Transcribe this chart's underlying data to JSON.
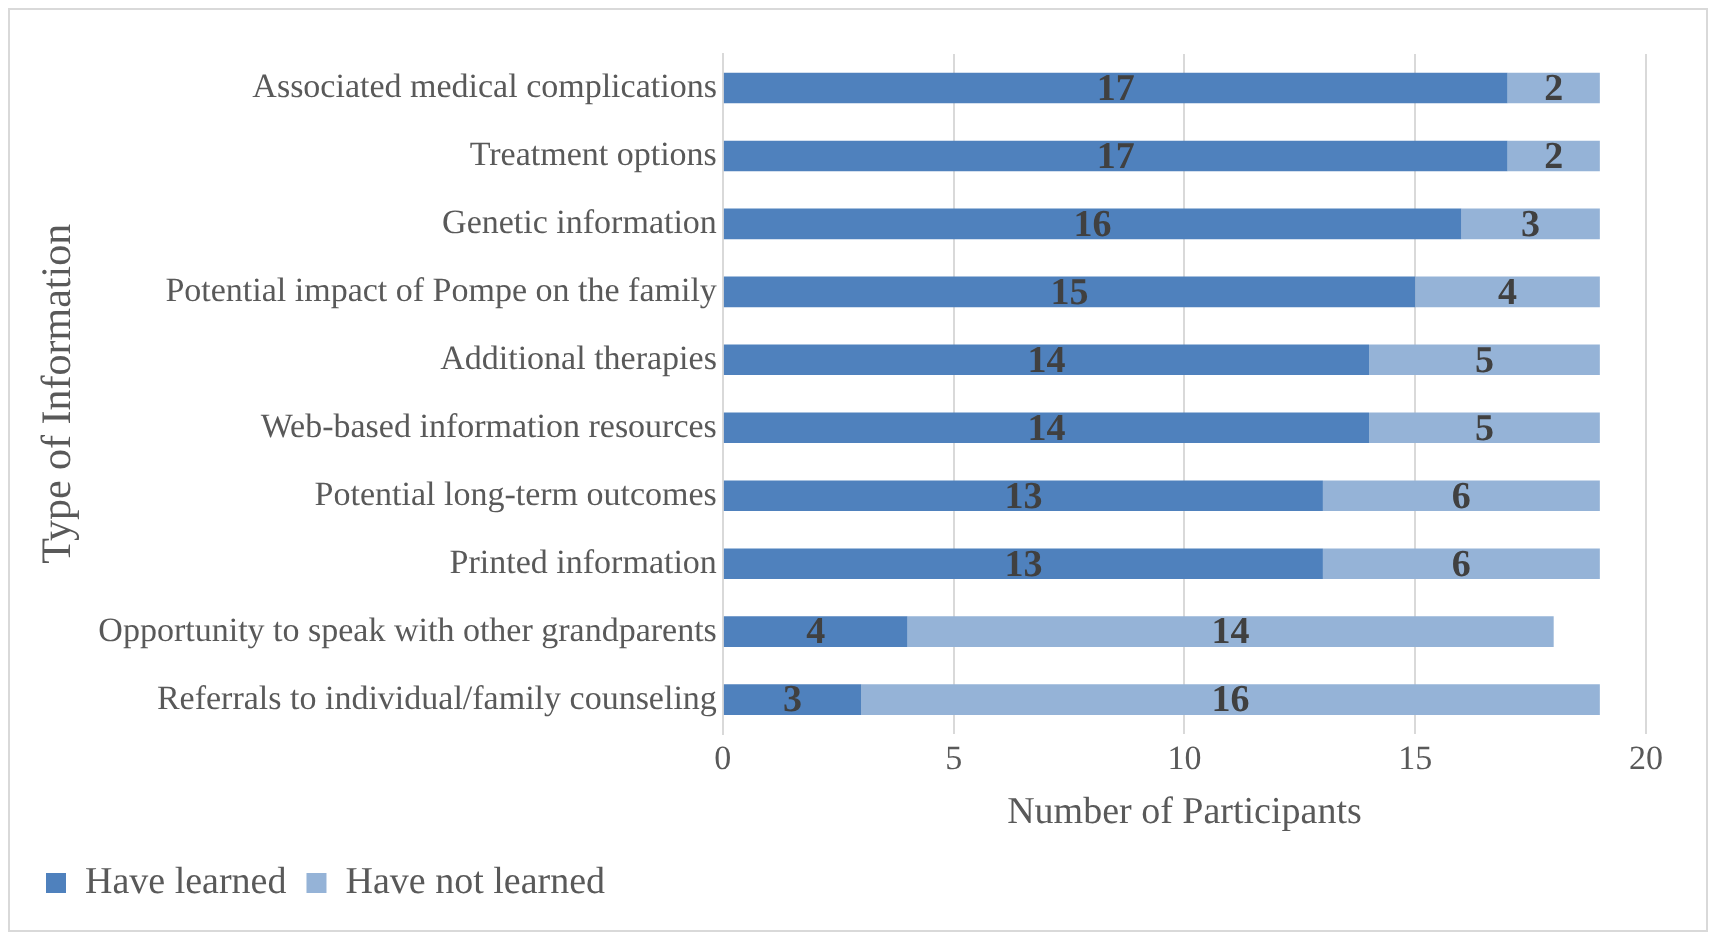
{
  "chart_data": {
    "type": "bar",
    "orientation": "horizontal",
    "stacked": true,
    "categories": [
      "Associated medical complications",
      "Treatment options",
      "Genetic information",
      "Potential impact of Pompe on the family",
      "Additional therapies",
      "Web-based information resources",
      "Potential long-term outcomes",
      "Printed information",
      "Opportunity to speak with other grandparents",
      "Referrals to individual/family counseling"
    ],
    "series": [
      {
        "name": "Have learned",
        "color": "#4f81bd",
        "values": [
          17,
          17,
          16,
          15,
          14,
          14,
          13,
          13,
          4,
          3
        ]
      },
      {
        "name": "Have not learned",
        "color": "#95b3d7",
        "values": [
          2,
          2,
          3,
          4,
          5,
          5,
          6,
          6,
          14,
          16
        ]
      }
    ],
    "xlim": [
      0,
      20
    ],
    "xticks": [
      0,
      5,
      10,
      15,
      20
    ],
    "xlabel": "Number of Participants",
    "ylabel": "Type of Information",
    "grid": "x",
    "legend": "bottom left",
    "data_labels": true
  }
}
